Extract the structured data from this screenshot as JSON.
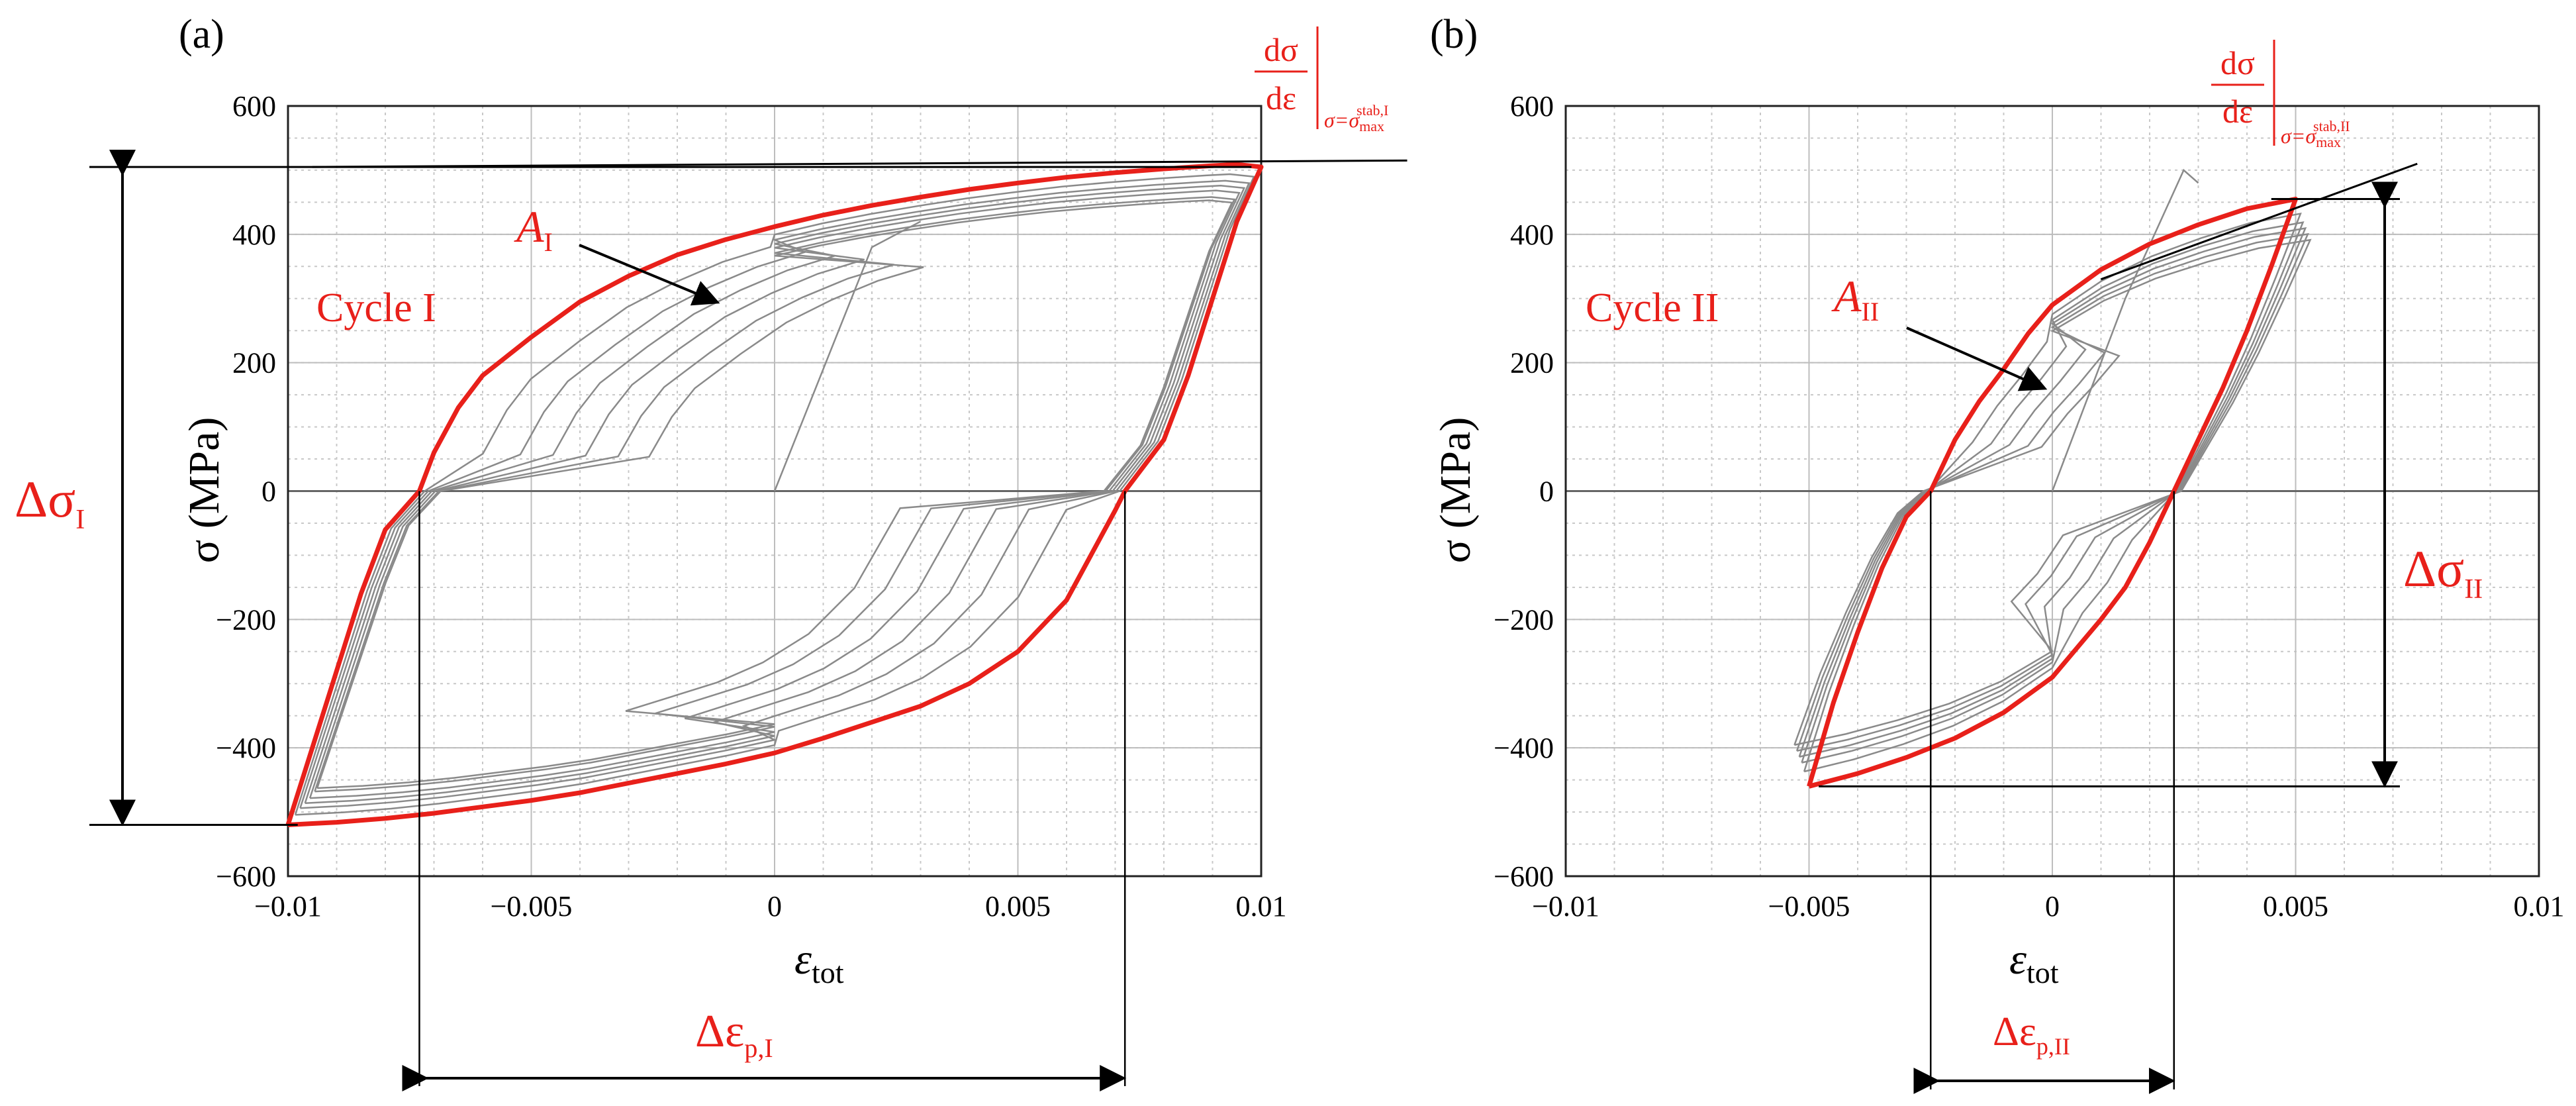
{
  "colors": {
    "stable_loop": "#e8201a",
    "cycles": "#8a8a8a",
    "grid": "#c8c8c8",
    "annotation": "#e8201a"
  },
  "chart_data": [
    {
      "type": "line",
      "panel_label": "(a)",
      "cycle_label": "Cycle I",
      "area_label": "A",
      "area_sub": "I",
      "delta_sigma_label": "Δσ",
      "delta_sigma_sub": "I",
      "delta_eps_label": "Δε",
      "delta_eps_sub": "p,I",
      "slope_label": {
        "num": "dσ",
        "den": "dε",
        "cond": "σ=σ",
        "cond_sub": "max",
        "cond_sup": "stab,I"
      },
      "xlabel": "ε",
      "xlabel_sub": "tot",
      "ylabel": "σ (MPa)",
      "xlim": [
        -0.01,
        0.01
      ],
      "ylim": [
        -600,
        600
      ],
      "xticks": [
        -0.01,
        -0.005,
        0,
        0.005,
        0.01
      ],
      "xtick_labels": [
        "−0.01",
        "−0.005",
        "0",
        "0.005",
        "0.01"
      ],
      "yticks": [
        -600,
        -400,
        -200,
        0,
        200,
        400,
        600
      ],
      "ytick_labels": [
        "−600",
        "−400",
        "−200",
        "0",
        "200",
        "400",
        "600"
      ],
      "grid": true,
      "stable_loop": {
        "upper": [
          [
            -0.01,
            -520
          ],
          [
            -0.0095,
            -400
          ],
          [
            -0.009,
            -280
          ],
          [
            -0.0085,
            -160
          ],
          [
            -0.008,
            -60
          ],
          [
            -0.0073,
            0
          ],
          [
            -0.007,
            60
          ],
          [
            -0.0065,
            130
          ],
          [
            -0.006,
            180
          ],
          [
            -0.005,
            240
          ],
          [
            -0.004,
            295
          ],
          [
            -0.003,
            335
          ],
          [
            -0.002,
            368
          ],
          [
            -0.001,
            392
          ],
          [
            0,
            412
          ],
          [
            0.001,
            430
          ],
          [
            0.002,
            445
          ],
          [
            0.003,
            458
          ],
          [
            0.004,
            470
          ],
          [
            0.005,
            480
          ],
          [
            0.006,
            489
          ],
          [
            0.007,
            496
          ],
          [
            0.008,
            502
          ],
          [
            0.009,
            507
          ],
          [
            0.0095,
            509
          ],
          [
            0.01,
            505
          ]
        ],
        "lower": [
          [
            0.01,
            505
          ],
          [
            0.0095,
            420
          ],
          [
            0.009,
            300
          ],
          [
            0.0085,
            180
          ],
          [
            0.008,
            80
          ],
          [
            0.0075,
            30
          ],
          [
            0.0072,
            0
          ],
          [
            0.007,
            -30
          ],
          [
            0.0065,
            -100
          ],
          [
            0.006,
            -170
          ],
          [
            0.005,
            -250
          ],
          [
            0.004,
            -300
          ],
          [
            0.003,
            -335
          ],
          [
            0.002,
            -360
          ],
          [
            0.001,
            -385
          ],
          [
            0,
            -408
          ],
          [
            -0.001,
            -425
          ],
          [
            -0.002,
            -440
          ],
          [
            -0.003,
            -455
          ],
          [
            -0.004,
            -470
          ],
          [
            -0.005,
            -482
          ],
          [
            -0.006,
            -492
          ],
          [
            -0.007,
            -502
          ],
          [
            -0.008,
            -510
          ],
          [
            -0.009,
            -516
          ],
          [
            -0.0095,
            -518
          ],
          [
            -0.01,
            -520
          ]
        ]
      },
      "initial_loading": [
        [
          0,
          0
        ],
        [
          0.002,
          380
        ],
        [
          0.003,
          420
        ]
      ],
      "sigma_max": 505,
      "sigma_min": -520,
      "eps_p_range": [
        -0.0073,
        0.0072
      ],
      "tangent": [
        [
          -0.0095,
          505
        ],
        [
          0.013,
          515
        ]
      ]
    },
    {
      "type": "line",
      "panel_label": "(b)",
      "cycle_label": "Cycle II",
      "area_label": "A",
      "area_sub": "II",
      "delta_sigma_label": "Δσ",
      "delta_sigma_sub": "II",
      "delta_eps_label": "Δε",
      "delta_eps_sub": "p,II",
      "slope_label": {
        "num": "dσ",
        "den": "dε",
        "cond": "σ=σ",
        "cond_sub": "max",
        "cond_sup": "stab,II"
      },
      "xlabel": "ε",
      "xlabel_sub": "tot",
      "ylabel": "σ (MPa)",
      "xlim": [
        -0.01,
        0.01
      ],
      "ylim": [
        -600,
        600
      ],
      "xticks": [
        -0.01,
        -0.005,
        0,
        0.005,
        0.01
      ],
      "xtick_labels": [
        "−0.01",
        "−0.005",
        "0",
        "0.005",
        "0.01"
      ],
      "yticks": [
        -600,
        -400,
        -200,
        0,
        200,
        400,
        600
      ],
      "ytick_labels": [
        "−600",
        "−400",
        "−200",
        "0",
        "200",
        "400",
        "600"
      ],
      "grid": true,
      "stable_loop": {
        "upper": [
          [
            -0.005,
            -460
          ],
          [
            -0.0045,
            -330
          ],
          [
            -0.004,
            -220
          ],
          [
            -0.0035,
            -120
          ],
          [
            -0.003,
            -40
          ],
          [
            -0.0025,
            0
          ],
          [
            -0.002,
            80
          ],
          [
            -0.0015,
            140
          ],
          [
            -0.001,
            190
          ],
          [
            -0.0005,
            245
          ],
          [
            0,
            290
          ],
          [
            0.001,
            345
          ],
          [
            0.002,
            385
          ],
          [
            0.003,
            415
          ],
          [
            0.004,
            440
          ],
          [
            0.005,
            455
          ]
        ],
        "lower": [
          [
            0.005,
            455
          ],
          [
            0.0045,
            350
          ],
          [
            0.004,
            250
          ],
          [
            0.0035,
            160
          ],
          [
            0.003,
            80
          ],
          [
            0.0025,
            0
          ],
          [
            0.002,
            -80
          ],
          [
            0.0015,
            -150
          ],
          [
            0.001,
            -200
          ],
          [
            0,
            -290
          ],
          [
            -0.001,
            -345
          ],
          [
            -0.002,
            -385
          ],
          [
            -0.003,
            -415
          ],
          [
            -0.004,
            -440
          ],
          [
            -0.005,
            -460
          ]
        ]
      },
      "initial_loading": [
        [
          0,
          0
        ],
        [
          0.0015,
          300
        ],
        [
          0.0027,
          500
        ],
        [
          0.003,
          480
        ]
      ],
      "sigma_max": 455,
      "sigma_min": -460,
      "eps_p_range": [
        -0.0025,
        0.0025
      ],
      "tangent": [
        [
          0.001,
          330
        ],
        [
          0.0075,
          510
        ]
      ]
    }
  ]
}
